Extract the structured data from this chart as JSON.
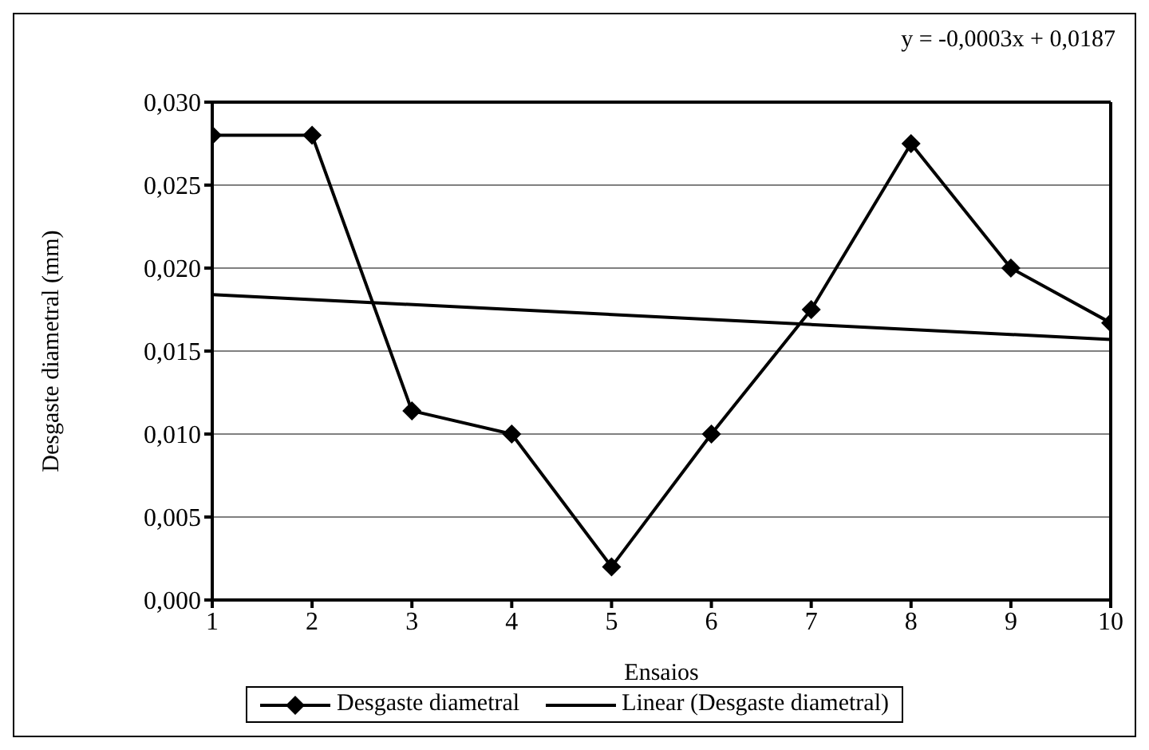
{
  "chart_data": {
    "type": "line",
    "xlabel": "Ensaios",
    "ylabel": "Desgaste diametral (mm)",
    "annotations": [
      "y = -0,0003x + 0,0187"
    ],
    "x": [
      1,
      2,
      3,
      4,
      5,
      6,
      7,
      8,
      9,
      10
    ],
    "series": [
      {
        "name": "Desgaste diametral",
        "color": "#000000",
        "marker": "diamond",
        "values": [
          0.028,
          0.028,
          0.0114,
          0.01,
          0.002,
          0.01,
          0.0175,
          0.0275,
          0.02,
          0.0167
        ]
      },
      {
        "name": "Linear (Desgaste diametral)",
        "color": "#000000",
        "marker": "none",
        "x": [
          1,
          10
        ],
        "values": [
          0.0184,
          0.0157
        ]
      }
    ],
    "xlim": [
      1,
      10
    ],
    "xticks": [
      1,
      2,
      3,
      4,
      5,
      6,
      7,
      8,
      9,
      10
    ],
    "ylim": [
      0,
      0.03
    ],
    "yticks": [
      {
        "value": 0,
        "label": "0,000"
      },
      {
        "value": 0.005,
        "label": "0,005"
      },
      {
        "value": 0.01,
        "label": "0,010"
      },
      {
        "value": 0.015,
        "label": "0,015"
      },
      {
        "value": 0.02,
        "label": "0,020"
      },
      {
        "value": 0.025,
        "label": "0,025"
      },
      {
        "value": 0.03,
        "label": "0,030"
      }
    ],
    "grid": "y",
    "legend": "bottom",
    "line_style": "solid"
  }
}
